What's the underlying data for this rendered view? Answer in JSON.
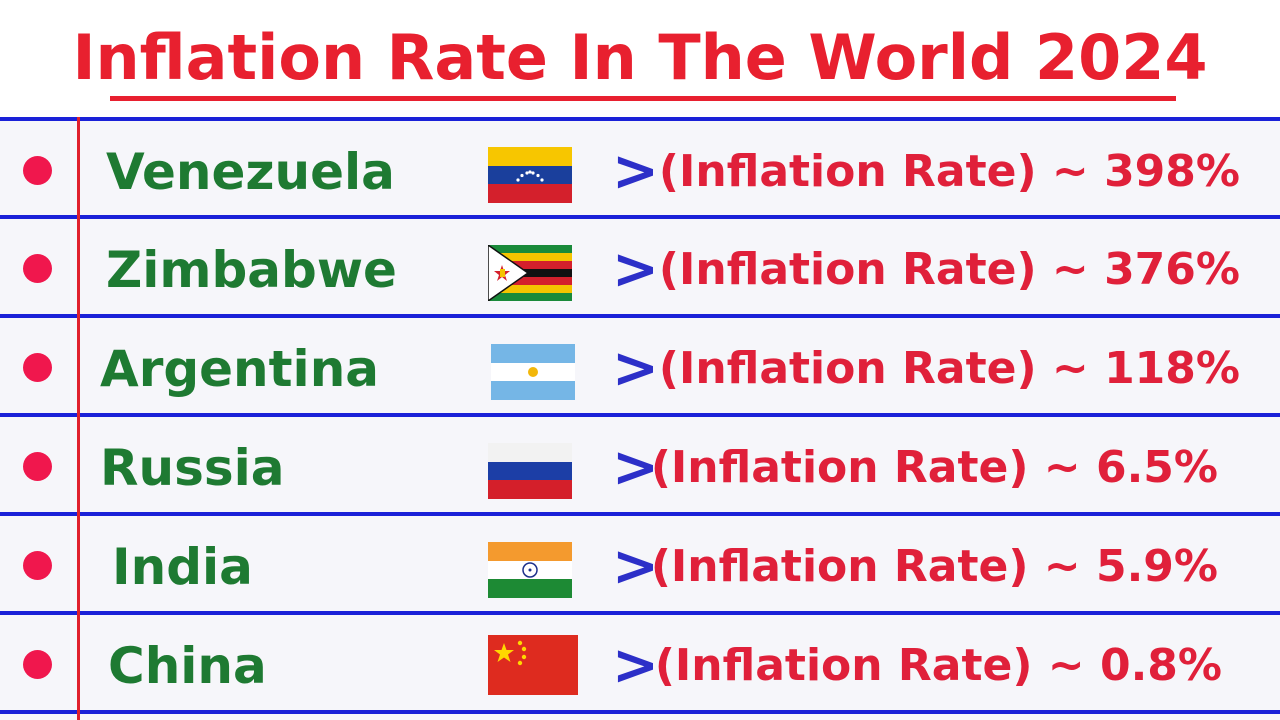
{
  "title": "Inflation Rate In The World 2024",
  "arrow_glyph": ">",
  "rows": [
    {
      "country": "Venezuela",
      "flag_icon": "venezuela-flag-icon",
      "rate_label": "(Inflation Rate) ~ 398%"
    },
    {
      "country": "Zimbabwe",
      "flag_icon": "zimbabwe-flag-icon",
      "rate_label": "(Inflation Rate) ~ 376%"
    },
    {
      "country": "Argentina",
      "flag_icon": "argentina-flag-icon",
      "rate_label": "(Inflation Rate) ~ 118%"
    },
    {
      "country": "Russia",
      "flag_icon": "russia-flag-icon",
      "rate_label": "(Inflation Rate) ~ 6.5%"
    },
    {
      "country": "India",
      "flag_icon": "india-flag-icon",
      "rate_label": "(Inflation Rate) ~ 5.9%"
    },
    {
      "country": "China",
      "flag_icon": "china-flag-icon",
      "rate_label": "(Inflation Rate) ~ 0.8%"
    }
  ],
  "colors": {
    "title": "#e8202f",
    "country": "#1e7a32",
    "rate": "#e0203a",
    "arrow": "#2c2fc8",
    "rule_lines": "#1a21d8",
    "margin_line": "#e0202c",
    "bullet": "#f0174d"
  }
}
